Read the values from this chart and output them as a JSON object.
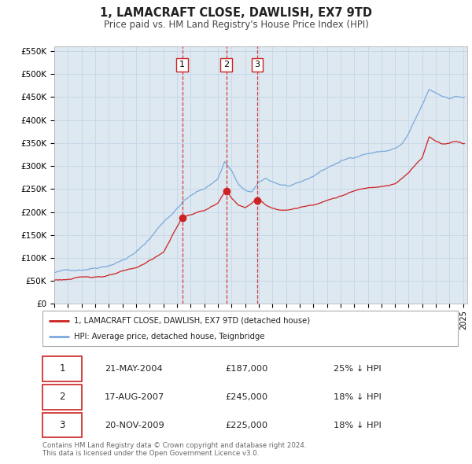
{
  "title": "1, LAMACRAFT CLOSE, DAWLISH, EX7 9TD",
  "subtitle": "Price paid vs. HM Land Registry's House Price Index (HPI)",
  "hpi_label": "HPI: Average price, detached house, Teignbridge",
  "property_label": "1, LAMACRAFT CLOSE, DAWLISH, EX7 9TD (detached house)",
  "hpi_color": "#7aaadd",
  "property_color": "#cc2222",
  "vline_color": "#cc2222",
  "grid_color": "#c8d8e8",
  "plot_bg_color": "#dde8f0",
  "ylim": [
    0,
    560000
  ],
  "yticks": [
    0,
    50000,
    100000,
    150000,
    200000,
    250000,
    300000,
    350000,
    400000,
    450000,
    500000,
    550000
  ],
  "ytick_labels": [
    "£0",
    "£50K",
    "£100K",
    "£150K",
    "£200K",
    "£250K",
    "£300K",
    "£350K",
    "£400K",
    "£450K",
    "£500K",
    "£550K"
  ],
  "sales": [
    {
      "num": 1,
      "date": "21-MAY-2004",
      "price": 187000,
      "pct": "25%",
      "x_year": 2004.38
    },
    {
      "num": 2,
      "date": "17-AUG-2007",
      "price": 245000,
      "pct": "18%",
      "x_year": 2007.63
    },
    {
      "num": 3,
      "date": "20-NOV-2009",
      "price": 225000,
      "pct": "18%",
      "x_year": 2009.89
    }
  ],
  "footnote": "Contains HM Land Registry data © Crown copyright and database right 2024.\nThis data is licensed under the Open Government Licence v3.0.",
  "xlim_start": 1995.0,
  "xlim_end": 2025.3,
  "hpi_anchors": [
    [
      1995.0,
      68000
    ],
    [
      1996.0,
      72000
    ],
    [
      1997.0,
      76000
    ],
    [
      1998.0,
      82000
    ],
    [
      1999.0,
      90000
    ],
    [
      2000.0,
      102000
    ],
    [
      2001.0,
      118000
    ],
    [
      2002.0,
      148000
    ],
    [
      2003.0,
      185000
    ],
    [
      2004.0,
      215000
    ],
    [
      2004.5,
      232000
    ],
    [
      2005.0,
      242000
    ],
    [
      2005.5,
      250000
    ],
    [
      2006.0,
      258000
    ],
    [
      2006.5,
      268000
    ],
    [
      2007.0,
      280000
    ],
    [
      2007.5,
      318000
    ],
    [
      2008.0,
      298000
    ],
    [
      2008.5,
      268000
    ],
    [
      2009.0,
      252000
    ],
    [
      2009.5,
      250000
    ],
    [
      2010.0,
      268000
    ],
    [
      2010.5,
      276000
    ],
    [
      2011.0,
      270000
    ],
    [
      2011.5,
      265000
    ],
    [
      2012.0,
      262000
    ],
    [
      2012.5,
      260000
    ],
    [
      2013.0,
      264000
    ],
    [
      2013.5,
      270000
    ],
    [
      2014.0,
      278000
    ],
    [
      2014.5,
      288000
    ],
    [
      2015.0,
      296000
    ],
    [
      2015.5,
      304000
    ],
    [
      2016.0,
      310000
    ],
    [
      2016.5,
      315000
    ],
    [
      2017.0,
      320000
    ],
    [
      2017.5,
      326000
    ],
    [
      2018.0,
      330000
    ],
    [
      2018.5,
      332000
    ],
    [
      2019.0,
      334000
    ],
    [
      2019.5,
      336000
    ],
    [
      2020.0,
      340000
    ],
    [
      2020.5,
      348000
    ],
    [
      2021.0,
      370000
    ],
    [
      2021.5,
      400000
    ],
    [
      2022.0,
      430000
    ],
    [
      2022.5,
      462000
    ],
    [
      2023.0,
      455000
    ],
    [
      2023.5,
      448000
    ],
    [
      2024.0,
      446000
    ],
    [
      2024.5,
      450000
    ],
    [
      2025.0,
      448000
    ]
  ],
  "prop_anchors": [
    [
      1995.0,
      52000
    ],
    [
      1997.0,
      57000
    ],
    [
      1999.0,
      63000
    ],
    [
      2001.0,
      76000
    ],
    [
      2003.0,
      110000
    ],
    [
      2004.38,
      187000
    ],
    [
      2005.0,
      193000
    ],
    [
      2006.0,
      202000
    ],
    [
      2007.0,
      216000
    ],
    [
      2007.63,
      245000
    ],
    [
      2008.0,
      228000
    ],
    [
      2008.5,
      212000
    ],
    [
      2009.0,
      206000
    ],
    [
      2009.89,
      225000
    ],
    [
      2010.5,
      213000
    ],
    [
      2011.0,
      206000
    ],
    [
      2012.0,
      202000
    ],
    [
      2013.0,
      208000
    ],
    [
      2014.0,
      216000
    ],
    [
      2015.0,
      226000
    ],
    [
      2016.0,
      236000
    ],
    [
      2017.0,
      246000
    ],
    [
      2018.0,
      253000
    ],
    [
      2019.0,
      260000
    ],
    [
      2020.0,
      265000
    ],
    [
      2021.0,
      288000
    ],
    [
      2022.0,
      322000
    ],
    [
      2022.5,
      368000
    ],
    [
      2023.0,
      358000
    ],
    [
      2023.5,
      352000
    ],
    [
      2024.0,
      355000
    ],
    [
      2024.5,
      360000
    ],
    [
      2025.0,
      356000
    ]
  ]
}
